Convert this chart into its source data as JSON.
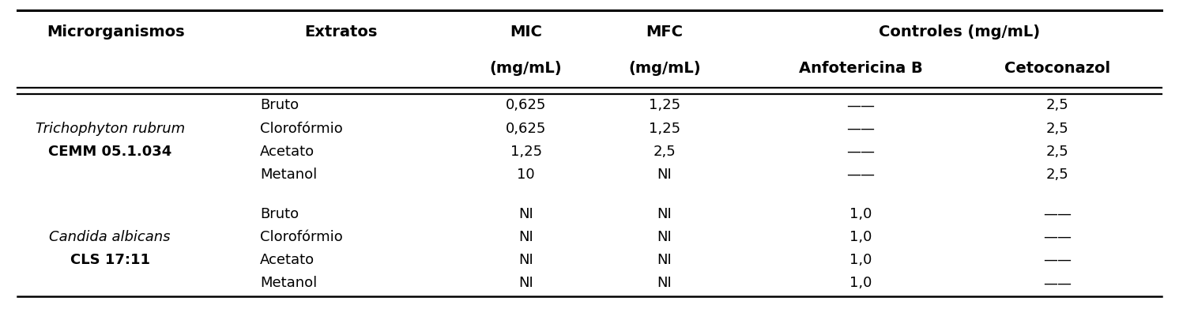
{
  "rows": [
    {
      "org": "",
      "org2": "",
      "extrato": "Bruto",
      "mic": "0,625",
      "mfc": "1,25",
      "anfo": "__",
      "ceto": "2,5"
    },
    {
      "org": "Trichophyton rubrum",
      "org2": "",
      "extrato": "Clorofórmio",
      "mic": "0,625",
      "mfc": "1,25",
      "anfo": "__",
      "ceto": "2,5"
    },
    {
      "org": "",
      "org2": "CEMM 05.1.034",
      "extrato": "Acetato",
      "mic": "1,25",
      "mfc": "2,5",
      "anfo": "__",
      "ceto": "2,5"
    },
    {
      "org": "",
      "org2": "",
      "extrato": "Metanol",
      "mic": "10",
      "mfc": "NI",
      "anfo": "__",
      "ceto": "2,5"
    },
    {
      "org": "",
      "org2": "",
      "extrato": "Bruto",
      "mic": "NI",
      "mfc": "NI",
      "anfo": "1,0",
      "ceto": "__"
    },
    {
      "org": "Candida albicans",
      "org2": "",
      "extrato": "Clorofórmio",
      "mic": "NI",
      "mfc": "NI",
      "anfo": "1,0",
      "ceto": "__"
    },
    {
      "org": "",
      "org2": "CLS 17:11",
      "extrato": "Acetato",
      "mic": "NI",
      "mfc": "NI",
      "anfo": "1,0",
      "ceto": "__"
    },
    {
      "org": "",
      "org2": "",
      "extrato": "Metanol",
      "mic": "NI",
      "mfc": "NI",
      "anfo": "1,0",
      "ceto": "__"
    }
  ],
  "italic_orgs": [
    "Trichophyton rubrum",
    "Candida albicans"
  ],
  "bg_color": "#ffffff",
  "header_fontsize": 14,
  "data_fontsize": 13,
  "dash": "——"
}
